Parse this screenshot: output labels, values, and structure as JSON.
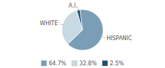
{
  "chart_data": {
    "type": "pie",
    "categories": [
      "HISPANIC",
      "WHITE",
      "A.I."
    ],
    "values": [
      64.7,
      32.8,
      2.5
    ],
    "value_labels": [
      "64.7%",
      "32.8%",
      "2.5%"
    ],
    "colors": [
      "#7a9eb5",
      "#c8d9e4",
      "#1f4e6e"
    ],
    "legend": "bottom"
  }
}
